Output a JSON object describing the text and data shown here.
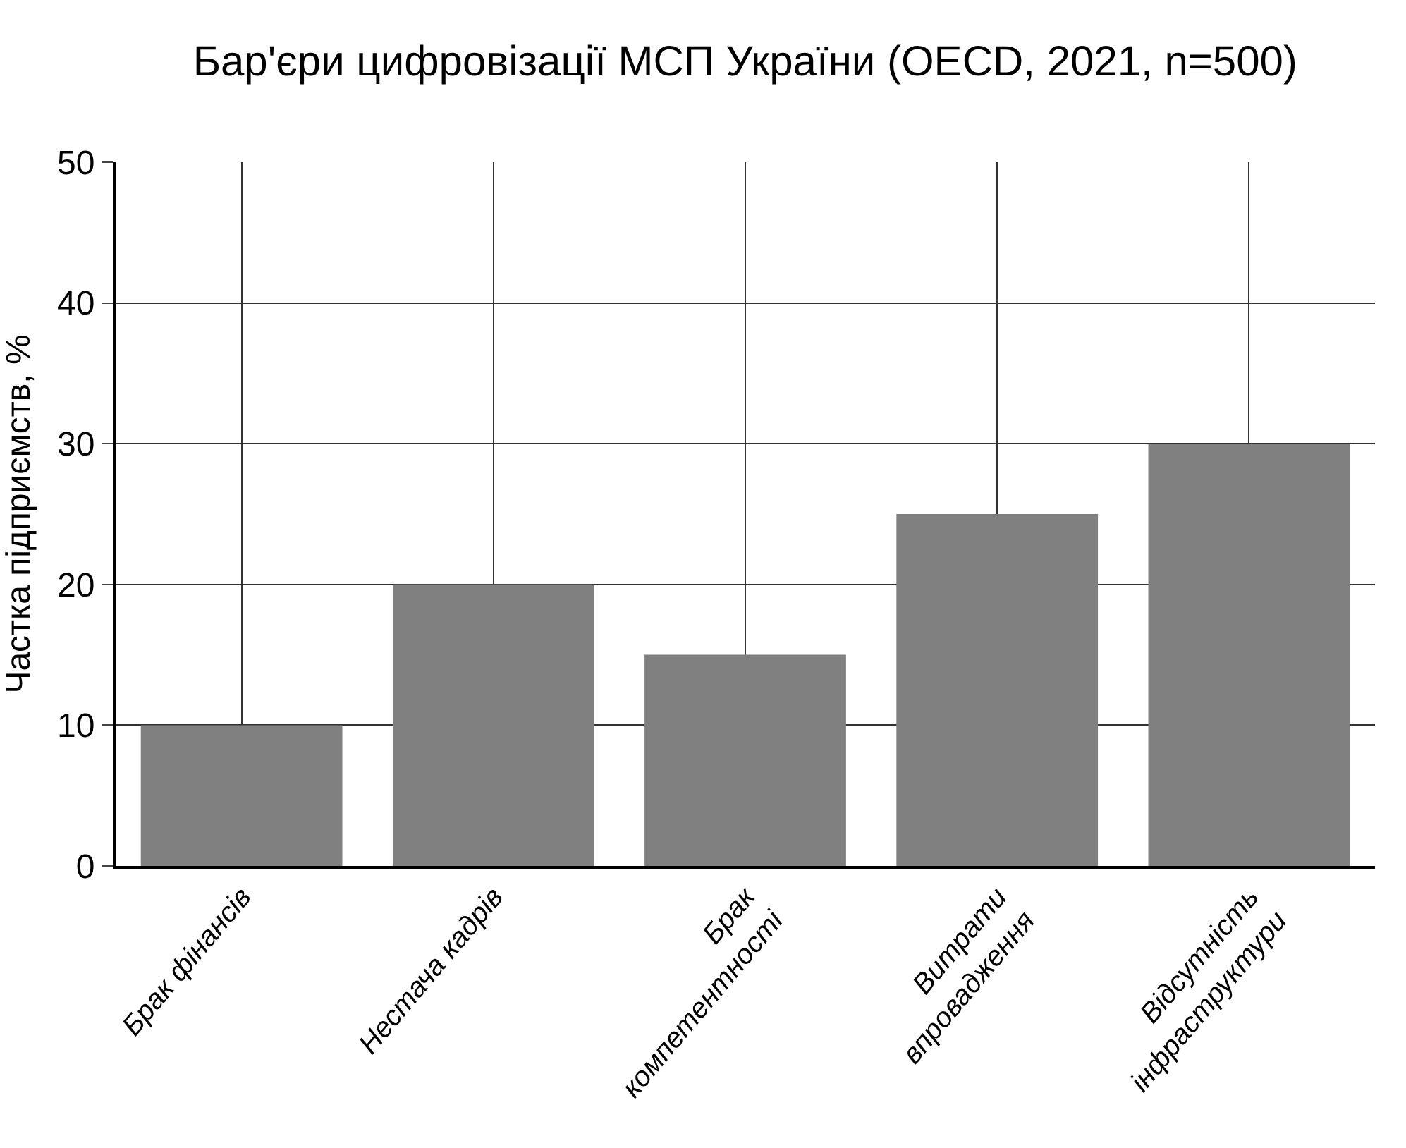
{
  "chart_data": {
    "type": "bar",
    "title": "Бар'єри цифровізації МСП України (OECD, 2021, n=500)",
    "ylabel": "Частка підприємств, %",
    "categories": [
      "Брак фінансів",
      "Нестача кадрів",
      "Брак\nкомпетентності",
      "Витрати\nвпровадження",
      "Відсутність\nінфраструктури"
    ],
    "values": [
      10,
      20,
      15,
      25,
      30
    ],
    "color": "#808080",
    "ylim": [
      0,
      50
    ],
    "yticks": [
      0,
      10,
      20,
      30,
      40,
      50
    ],
    "grid": true,
    "legend": false
  }
}
